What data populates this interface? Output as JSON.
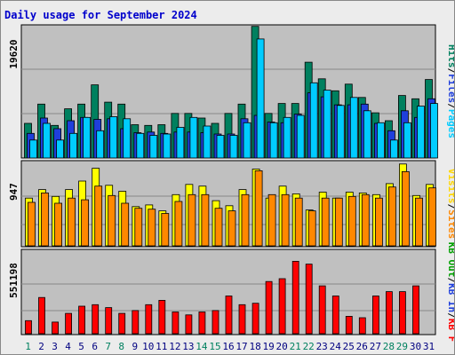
{
  "title": "Daily usage for September 2024",
  "colors": {
    "title": "#0000cc",
    "panel_bg": "#c0c0c0",
    "grid": "#888888",
    "page_bg": "#ececec",
    "hits": "#00ccff",
    "files": "#1f3fdc",
    "pages": "#00805f",
    "visits": "#ffff00",
    "sites": "#ff8800",
    "kbf": "#ff0000",
    "day_weekend": "#00805f",
    "day_weekday": "#000080"
  },
  "chart_data": [
    {
      "type": "bar",
      "name": "hits-files-pages",
      "ymax_label": "19620",
      "ymax": 19620,
      "y_labels_right": [
        {
          "text": "Hits",
          "color": "#00805f"
        },
        {
          "text": "/",
          "color": "#000000"
        },
        {
          "text": "Files",
          "color": "#1f3fdc"
        },
        {
          "text": "/",
          "color": "#000000"
        },
        {
          "text": "Pages",
          "color": "#00ccff"
        }
      ],
      "series": [
        {
          "name": "Hits",
          "color": "#00805f",
          "values": [
            5200,
            8100,
            4900,
            7400,
            8100,
            11000,
            8400,
            8100,
            5000,
            4900,
            5000,
            6700,
            6700,
            6000,
            5200,
            6700,
            8100,
            19800,
            6700,
            8200,
            8200,
            14400,
            11900,
            10100,
            11100,
            9100,
            6800,
            5600,
            9400,
            8900,
            11800
          ]
        },
        {
          "name": "Files",
          "color": "#1f3fdc",
          "values": [
            3700,
            6000,
            4400,
            5600,
            6100,
            5800,
            5900,
            4400,
            3800,
            3900,
            3700,
            3900,
            3900,
            3800,
            3600,
            3600,
            5900,
            6400,
            5400,
            5300,
            6600,
            9800,
            9200,
            8000,
            8000,
            8100,
            5200,
            4100,
            7100,
            6100,
            8900
          ]
        },
        {
          "name": "Pages",
          "color": "#00ccff",
          "values": [
            2700,
            5200,
            2700,
            3700,
            6100,
            4100,
            6200,
            5900,
            3700,
            3400,
            3600,
            4600,
            6100,
            4800,
            3400,
            3400,
            5300,
            17900,
            5300,
            6100,
            6400,
            11300,
            10200,
            7900,
            9100,
            7100,
            5300,
            2700,
            5300,
            7800,
            8200
          ]
        }
      ]
    },
    {
      "type": "bar",
      "name": "visits-sites",
      "ymax_label": "947",
      "ymax": 947,
      "y_labels_right": [
        {
          "text": "Visits",
          "color": "#ffd700"
        },
        {
          "text": "/",
          "color": "#000000"
        },
        {
          "text": "Sites",
          "color": "#ff8800"
        }
      ],
      "series": [
        {
          "name": "Visits",
          "color": "#ffff00",
          "values": [
            560,
            660,
            580,
            660,
            760,
            910,
            710,
            640,
            460,
            480,
            410,
            600,
            720,
            700,
            530,
            470,
            660,
            900,
            560,
            700,
            610,
            420,
            630,
            560,
            630,
            620,
            600,
            730,
            960,
            590,
            720
          ]
        },
        {
          "name": "Sites",
          "color": "#ff8800",
          "values": [
            510,
            620,
            500,
            560,
            540,
            700,
            590,
            500,
            440,
            430,
            380,
            520,
            600,
            600,
            440,
            410,
            600,
            880,
            600,
            600,
            560,
            410,
            560,
            560,
            580,
            600,
            560,
            690,
            870,
            560,
            680
          ]
        }
      ]
    },
    {
      "type": "bar",
      "name": "kb-f-in-out",
      "ymax_label": "551198",
      "ymax": 551198,
      "y_labels_right": [
        {
          "text": "KB Out",
          "color": "#00a000"
        },
        {
          "text": "/",
          "color": "#000000"
        },
        {
          "text": "KB In",
          "color": "#1f3fdc"
        },
        {
          "text": "/",
          "color": "#000000"
        },
        {
          "text": "KB F",
          "color": "#ff0000"
        }
      ],
      "series": [
        {
          "name": "KB F",
          "color": "#ff0000",
          "values": [
            90000,
            250000,
            80000,
            140000,
            190000,
            200000,
            180000,
            140000,
            160000,
            200000,
            230000,
            150000,
            130000,
            150000,
            160000,
            260000,
            200000,
            210000,
            360000,
            380000,
            500000,
            480000,
            330000,
            260000,
            120000,
            110000,
            260000,
            290000,
            290000,
            330000,
            0
          ]
        }
      ]
    }
  ],
  "days": [
    "1",
    "2",
    "3",
    "4",
    "5",
    "6",
    "7",
    "8",
    "9",
    "10",
    "11",
    "12",
    "13",
    "14",
    "15",
    "16",
    "17",
    "18",
    "19",
    "20",
    "21",
    "22",
    "23",
    "24",
    "25",
    "26",
    "27",
    "28",
    "29",
    "30",
    "31"
  ],
  "weekend_days": [
    1,
    7,
    8,
    14,
    15,
    21,
    22,
    28,
    29
  ]
}
